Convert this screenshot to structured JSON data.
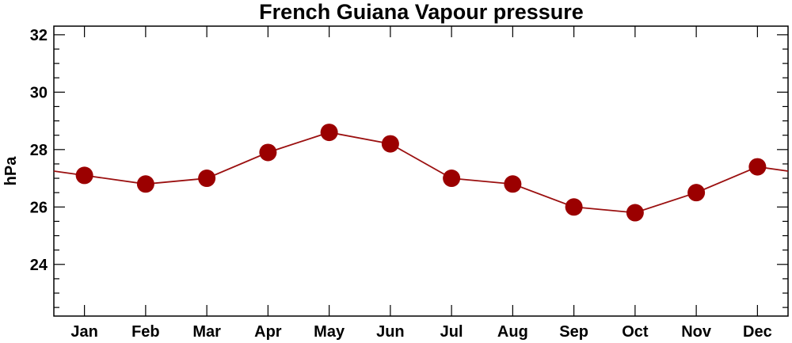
{
  "chart_data": {
    "type": "line",
    "title": "French Guiana Vapour pressure",
    "xlabel": "",
    "ylabel": "hPa",
    "categories": [
      "Jan",
      "Feb",
      "Mar",
      "Apr",
      "May",
      "Jun",
      "Jul",
      "Aug",
      "Sep",
      "Oct",
      "Nov",
      "Dec"
    ],
    "series": [
      {
        "values": [
          27.1,
          26.8,
          27.0,
          27.9,
          28.6,
          28.2,
          27.0,
          26.8,
          26.0,
          25.8,
          26.5,
          27.4
        ]
      }
    ],
    "ylim": [
      22.2,
      32.3
    ],
    "yticks_major": [
      24,
      26,
      28,
      30,
      32
    ],
    "yticks_minor_step": 0.5,
    "grid": false,
    "legend": "none",
    "line_wraps_at_edges": true,
    "colors": {
      "line": "#9b1010",
      "marker": "#9b0000",
      "axes": "#000000",
      "background": "#ffffff"
    }
  }
}
